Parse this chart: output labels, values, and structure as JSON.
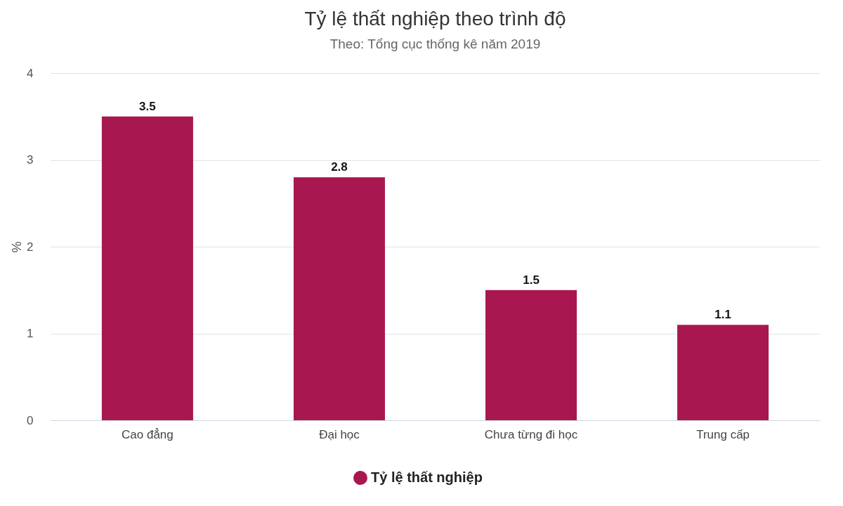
{
  "chart_data": {
    "type": "bar",
    "title": "Tỷ lệ thất nghiệp theo trình độ",
    "subtitle": "Theo: Tổng cục thống kê năm 2019",
    "ylabel": "%",
    "categories": [
      "Cao đẳng",
      "Đại học",
      "Chưa từng đi học",
      "Trung cấp"
    ],
    "series": [
      {
        "name": "Tỷ lệ thất nghiệp",
        "color": "#a8174f",
        "values": [
          3.5,
          2.8,
          1.5,
          1.1
        ]
      }
    ],
    "ylim": [
      0,
      4
    ],
    "yticks": [
      0,
      1,
      2,
      3,
      4
    ],
    "grid": "y",
    "legend": "bottom",
    "data_labels": true
  }
}
